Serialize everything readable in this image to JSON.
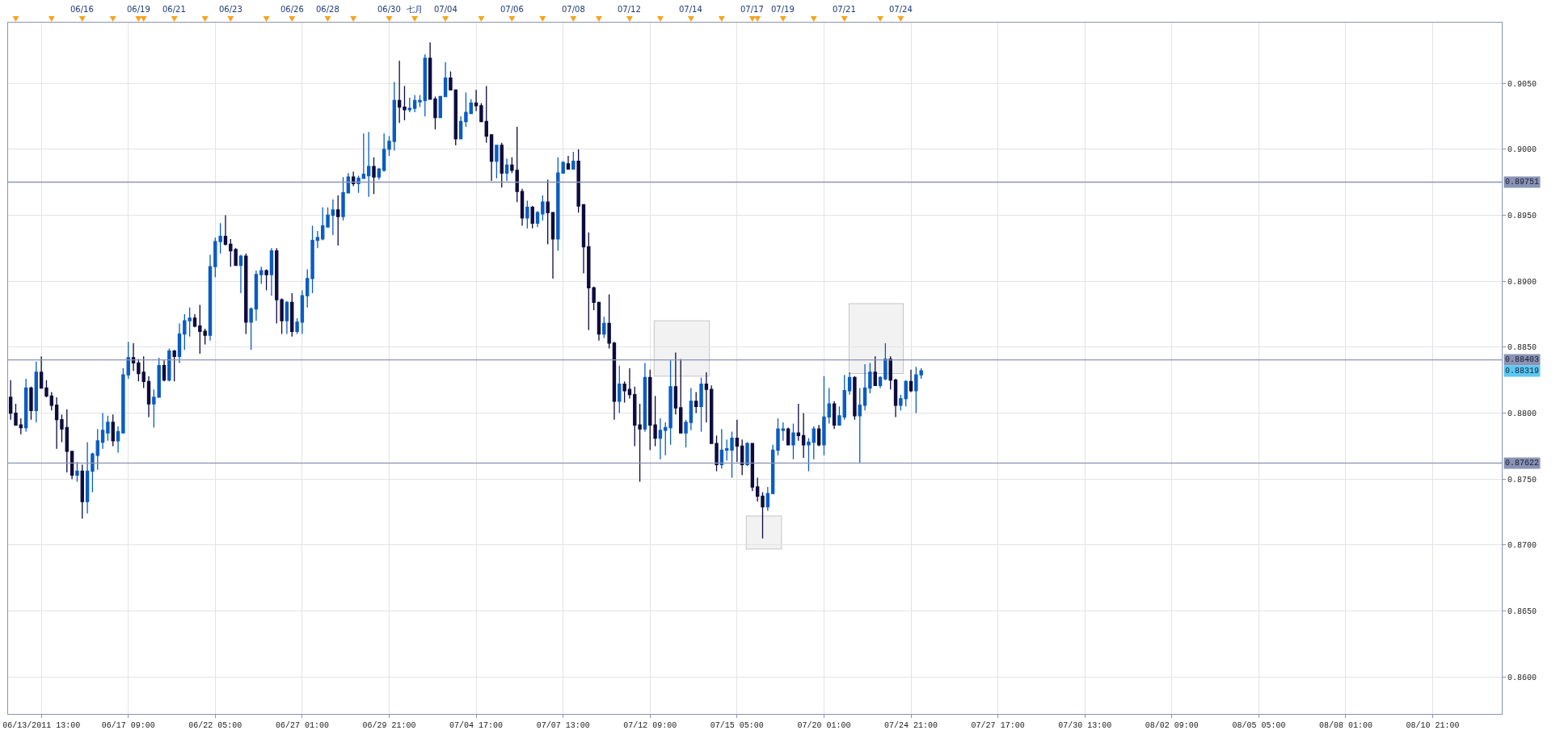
{
  "chart_data": {
    "type": "candlestick",
    "categories": [
      null,
      null,
      null,
      null,
      null,
      null,
      "06/13/2011 13:00",
      null,
      null,
      null,
      null,
      null,
      null,
      null,
      null,
      null,
      null,
      null,
      null,
      null,
      null,
      null,
      null,
      "06/17 09:00",
      null,
      null,
      null,
      null,
      null,
      null,
      null,
      null,
      null,
      null,
      null,
      null,
      null,
      null,
      null,
      null,
      "06/22 05:00",
      null,
      null,
      null,
      null,
      null,
      null,
      null,
      null,
      null,
      null,
      null,
      null,
      null,
      null,
      null,
      null,
      "06/27 01:00",
      null,
      null,
      null,
      null,
      null,
      null,
      null,
      null,
      null,
      null,
      null,
      null,
      null,
      null,
      null,
      null,
      "06/29 21:00",
      null,
      null,
      null,
      null,
      null,
      null,
      null,
      null,
      null,
      null,
      null,
      null,
      null,
      null,
      null,
      null,
      "07/04 17:00",
      null,
      null,
      null,
      null,
      null,
      null,
      null,
      null,
      null,
      null,
      null,
      null,
      null,
      null,
      null,
      null,
      "07/07 13:00",
      null,
      null,
      null,
      null,
      null,
      null,
      null,
      null,
      null,
      null,
      null,
      null,
      null,
      null,
      null,
      null,
      "07/12 09:00",
      null,
      null,
      null,
      null,
      null,
      null,
      null,
      null,
      null,
      null,
      null,
      null,
      null,
      null,
      null,
      null,
      "07/15 05:00",
      null,
      null,
      null,
      null,
      null,
      null,
      null,
      null,
      null,
      null,
      null,
      null,
      null,
      null,
      null,
      null,
      "07/20 01:00",
      null,
      null,
      null,
      null,
      null,
      null,
      null,
      null,
      null,
      null,
      null,
      null,
      null,
      null,
      null,
      null,
      "07/24 21:00",
      null,
      null,
      null,
      null,
      null,
      null,
      null,
      null,
      null,
      null,
      null,
      null,
      null,
      null,
      null,
      null,
      "07/27 17:00",
      null,
      null,
      null,
      null,
      null,
      null,
      null,
      null,
      null,
      null,
      null,
      null,
      null,
      null,
      null,
      null,
      "07/30 13:00",
      null,
      null,
      null,
      null,
      null,
      null,
      null,
      null,
      null,
      null,
      null,
      null,
      null,
      null,
      null,
      null,
      "08/02 09:00",
      null,
      null,
      null,
      null,
      null,
      null,
      null,
      null,
      null,
      null,
      null,
      null,
      null,
      null,
      null,
      null,
      "08/05 05:00",
      null,
      null,
      null,
      null,
      null,
      null,
      null,
      null,
      null,
      null,
      null,
      null,
      null,
      null,
      null,
      null,
      "08/08 01:00",
      null,
      null,
      null,
      null,
      null,
      null,
      null,
      null,
      null,
      null,
      null,
      null,
      null,
      null,
      null,
      null,
      "08/10 21:00",
      null,
      null,
      null,
      null,
      null,
      null,
      null,
      null,
      null,
      null,
      null,
      null,
      null
    ],
    "ohlc": [
      [
        0.8812,
        0.8825,
        0.8795,
        0.88
      ],
      [
        0.88,
        0.8807,
        0.8791,
        0.8791
      ],
      [
        0.8791,
        0.8796,
        0.8784,
        0.8789
      ],
      [
        0.8789,
        0.8826,
        0.8786,
        0.8819
      ],
      [
        0.8819,
        0.882,
        0.8795,
        0.8802
      ],
      [
        0.8802,
        0.8839,
        0.8793,
        0.8831
      ],
      [
        0.8831,
        0.8843,
        0.8819,
        0.8819
      ],
      [
        0.8819,
        0.8825,
        0.8812,
        0.8813
      ],
      [
        0.8813,
        0.8816,
        0.8802,
        0.8806
      ],
      [
        0.8806,
        0.8812,
        0.8773,
        0.8795
      ],
      [
        0.8795,
        0.8799,
        0.8778,
        0.8788
      ],
      [
        0.8789,
        0.8803,
        0.8755,
        0.8771
      ],
      [
        0.8771,
        0.8771,
        0.875,
        0.8753
      ],
      [
        0.8753,
        0.8763,
        0.8748,
        0.8756
      ],
      [
        0.8756,
        0.8761,
        0.872,
        0.8733
      ],
      [
        0.8733,
        0.8778,
        0.8724,
        0.8756
      ],
      [
        0.8756,
        0.877,
        0.874,
        0.8769
      ],
      [
        0.8768,
        0.8788,
        0.8757,
        0.8779
      ],
      [
        0.8778,
        0.88,
        0.8773,
        0.8787
      ],
      [
        0.8785,
        0.8798,
        0.8779,
        0.8793
      ],
      [
        0.8793,
        0.8799,
        0.8775,
        0.8779
      ],
      [
        0.8779,
        0.879,
        0.877,
        0.8786
      ],
      [
        0.8785,
        0.8834,
        0.8785,
        0.8829
      ],
      [
        0.8829,
        0.8854,
        0.8826,
        0.8842
      ],
      [
        0.8842,
        0.8853,
        0.8832,
        0.8838
      ],
      [
        0.8838,
        0.8841,
        0.8824,
        0.883
      ],
      [
        0.8831,
        0.8843,
        0.8819,
        0.8824
      ],
      [
        0.8824,
        0.8828,
        0.8797,
        0.8807
      ],
      [
        0.8807,
        0.8818,
        0.8789,
        0.8812
      ],
      [
        0.8812,
        0.8842,
        0.8812,
        0.8836
      ],
      [
        0.8836,
        0.884,
        0.8824,
        0.8825
      ],
      [
        0.8825,
        0.8849,
        0.8824,
        0.8847
      ],
      [
        0.8847,
        0.8848,
        0.8824,
        0.8843
      ],
      [
        0.8843,
        0.8868,
        0.8838,
        0.886
      ],
      [
        0.886,
        0.8875,
        0.8848,
        0.887
      ],
      [
        0.887,
        0.888,
        0.8858,
        0.8872
      ],
      [
        0.8872,
        0.8875,
        0.8865,
        0.8866
      ],
      [
        0.8866,
        0.8882,
        0.8845,
        0.8862
      ],
      [
        0.8862,
        0.8864,
        0.8852,
        0.8859
      ],
      [
        0.8859,
        0.892,
        0.8855,
        0.8911
      ],
      [
        0.8911,
        0.8933,
        0.8903,
        0.893
      ],
      [
        0.893,
        0.8944,
        0.8921,
        0.8934
      ],
      [
        0.8934,
        0.895,
        0.8927,
        0.8928
      ],
      [
        0.8928,
        0.8932,
        0.8911,
        0.8923
      ],
      [
        0.8924,
        0.8925,
        0.8912,
        0.8912
      ],
      [
        0.8912,
        0.892,
        0.8891,
        0.8919
      ],
      [
        0.8919,
        0.8921,
        0.886,
        0.8869
      ],
      [
        0.8869,
        0.888,
        0.8848,
        0.8879
      ],
      [
        0.8879,
        0.8908,
        0.887,
        0.8905
      ],
      [
        0.8905,
        0.8911,
        0.8898,
        0.8908
      ],
      [
        0.8908,
        0.8909,
        0.8893,
        0.8905
      ],
      [
        0.8905,
        0.8925,
        0.8889,
        0.8923
      ],
      [
        0.8923,
        0.8925,
        0.8868,
        0.8886
      ],
      [
        0.8886,
        0.8887,
        0.886,
        0.887
      ],
      [
        0.887,
        0.8885,
        0.886,
        0.8884
      ],
      [
        0.8884,
        0.8891,
        0.8858,
        0.8862
      ],
      [
        0.8862,
        0.8872,
        0.886,
        0.8869
      ],
      [
        0.8869,
        0.8893,
        0.886,
        0.8889
      ],
      [
        0.8889,
        0.8909,
        0.888,
        0.8902
      ],
      [
        0.8902,
        0.8942,
        0.8891,
        0.8931
      ],
      [
        0.8931,
        0.8938,
        0.8925,
        0.8933
      ],
      [
        0.8932,
        0.8956,
        0.8931,
        0.8942
      ],
      [
        0.8941,
        0.8956,
        0.8941,
        0.895
      ],
      [
        0.895,
        0.8962,
        0.8935,
        0.8954
      ],
      [
        0.8954,
        0.8965,
        0.8927,
        0.8949
      ],
      [
        0.8949,
        0.8979,
        0.8946,
        0.8967
      ],
      [
        0.8967,
        0.8982,
        0.8967,
        0.8979
      ],
      [
        0.8979,
        0.8983,
        0.8972,
        0.8974
      ],
      [
        0.8974,
        0.898,
        0.8967,
        0.8978
      ],
      [
        0.8978,
        0.9012,
        0.8978,
        0.8981
      ],
      [
        0.898,
        0.9013,
        0.8964,
        0.8987
      ],
      [
        0.8987,
        0.8994,
        0.8966,
        0.8979
      ],
      [
        0.8979,
        0.8986,
        0.8977,
        0.8985
      ],
      [
        0.8984,
        0.9012,
        0.8983,
        0.9
      ],
      [
        0.9,
        0.901,
        0.8995,
        0.9006
      ],
      [
        0.9006,
        0.9051,
        0.8999,
        0.9037
      ],
      [
        0.9037,
        0.9067,
        0.902,
        0.9032
      ],
      [
        0.9032,
        0.9048,
        0.9022,
        0.903
      ],
      [
        0.903,
        0.9039,
        0.9028,
        0.9031
      ],
      [
        0.9031,
        0.9041,
        0.9028,
        0.9037
      ],
      [
        0.9036,
        0.9041,
        0.9032,
        0.9037
      ],
      [
        0.9037,
        0.9072,
        0.9025,
        0.9069
      ],
      [
        0.9069,
        0.9081,
        0.9038,
        0.9038
      ],
      [
        0.9038,
        0.904,
        0.9015,
        0.9024
      ],
      [
        0.9024,
        0.904,
        0.9024,
        0.904
      ],
      [
        0.904,
        0.9066,
        0.904,
        0.9054
      ],
      [
        0.9054,
        0.9059,
        0.9045,
        0.9045
      ],
      [
        0.9045,
        0.9045,
        0.9003,
        0.9008
      ],
      [
        0.9008,
        0.9025,
        0.9008,
        0.9021
      ],
      [
        0.9021,
        0.9043,
        0.9017,
        0.9028
      ],
      [
        0.9027,
        0.9038,
        0.9027,
        0.9035
      ],
      [
        0.9035,
        0.9045,
        0.9029,
        0.9033
      ],
      [
        0.9033,
        0.9035,
        0.9021,
        0.9021
      ],
      [
        0.9021,
        0.9048,
        0.9005,
        0.901
      ],
      [
        0.9011,
        0.9011,
        0.8976,
        0.8991
      ],
      [
        0.8991,
        0.9003,
        0.8978,
        0.9003
      ],
      [
        0.9003,
        0.9005,
        0.8971,
        0.8982
      ],
      [
        0.8982,
        0.8993,
        0.8976,
        0.8988
      ],
      [
        0.8988,
        0.8994,
        0.8982,
        0.8984
      ],
      [
        0.8984,
        0.9017,
        0.896,
        0.8968
      ],
      [
        0.8968,
        0.897,
        0.8942,
        0.8948
      ],
      [
        0.8948,
        0.8961,
        0.894,
        0.8956
      ],
      [
        0.8956,
        0.8957,
        0.894,
        0.8944
      ],
      [
        0.8944,
        0.8953,
        0.8941,
        0.8952
      ],
      [
        0.8951,
        0.8965,
        0.8946,
        0.896
      ],
      [
        0.896,
        0.8977,
        0.8928,
        0.8952
      ],
      [
        0.8952,
        0.8952,
        0.8902,
        0.8932
      ],
      [
        0.8932,
        0.8994,
        0.8923,
        0.8982
      ],
      [
        0.8982,
        0.8991,
        0.8982,
        0.899
      ],
      [
        0.8989,
        0.8995,
        0.8985,
        0.8985
      ],
      [
        0.8985,
        0.8998,
        0.8985,
        0.8991
      ],
      [
        0.8991,
        0.9,
        0.8952,
        0.8957
      ],
      [
        0.8958,
        0.8958,
        0.8906,
        0.8926
      ],
      [
        0.8926,
        0.8937,
        0.8863,
        0.8895
      ],
      [
        0.8895,
        0.8896,
        0.8878,
        0.8884
      ],
      [
        0.8884,
        0.8884,
        0.8855,
        0.886
      ],
      [
        0.886,
        0.8873,
        0.8857,
        0.8868
      ],
      [
        0.8868,
        0.889,
        0.8849,
        0.8853
      ],
      [
        0.8853,
        0.8854,
        0.8795,
        0.8809
      ],
      [
        0.8809,
        0.8836,
        0.88,
        0.8822
      ],
      [
        0.8822,
        0.8824,
        0.8808,
        0.8817
      ],
      [
        0.8818,
        0.8834,
        0.8811,
        0.8814
      ],
      [
        0.8814,
        0.882,
        0.8775,
        0.8791
      ],
      [
        0.8791,
        0.8807,
        0.8748,
        0.8788
      ],
      [
        0.8788,
        0.8838,
        0.8786,
        0.8827
      ],
      [
        0.8827,
        0.8833,
        0.8772,
        0.8791
      ],
      [
        0.8791,
        0.8813,
        0.8775,
        0.8781
      ],
      [
        0.8781,
        0.8796,
        0.8765,
        0.8787
      ],
      [
        0.8787,
        0.8793,
        0.8768,
        0.8789
      ],
      [
        0.8789,
        0.884,
        0.8776,
        0.882
      ],
      [
        0.882,
        0.8846,
        0.8799,
        0.8804
      ],
      [
        0.8804,
        0.8841,
        0.8785,
        0.8785
      ],
      [
        0.8785,
        0.8795,
        0.8774,
        0.8793
      ],
      [
        0.8793,
        0.8819,
        0.8787,
        0.8809
      ],
      [
        0.8809,
        0.8816,
        0.88,
        0.8805
      ],
      [
        0.8805,
        0.8827,
        0.8786,
        0.8822
      ],
      [
        0.8822,
        0.8831,
        0.8793,
        0.8818
      ],
      [
        0.8818,
        0.8821,
        0.8777,
        0.8777
      ],
      [
        0.8777,
        0.8783,
        0.8756,
        0.8761
      ],
      [
        0.8761,
        0.8788,
        0.8758,
        0.8772
      ],
      [
        0.8772,
        0.878,
        0.8764,
        0.8773
      ],
      [
        0.8772,
        0.8786,
        0.8751,
        0.8781
      ],
      [
        0.8781,
        0.8795,
        0.8763,
        0.8775
      ],
      [
        0.8775,
        0.878,
        0.8753,
        0.8761
      ],
      [
        0.8761,
        0.8778,
        0.876,
        0.8777
      ],
      [
        0.8777,
        0.8777,
        0.8741,
        0.8744
      ],
      [
        0.8744,
        0.8751,
        0.8733,
        0.8737
      ],
      [
        0.8737,
        0.874,
        0.8705,
        0.8729
      ],
      [
        0.8729,
        0.8744,
        0.8726,
        0.8739
      ],
      [
        0.8739,
        0.8776,
        0.8739,
        0.8772
      ],
      [
        0.8772,
        0.8796,
        0.8768,
        0.8788
      ],
      [
        0.8787,
        0.8793,
        0.8779,
        0.8788
      ],
      [
        0.8788,
        0.8789,
        0.8776,
        0.8776
      ],
      [
        0.8776,
        0.8792,
        0.8765,
        0.8785
      ],
      [
        0.8785,
        0.8807,
        0.8779,
        0.8783
      ],
      [
        0.8783,
        0.88,
        0.8766,
        0.8776
      ],
      [
        0.8776,
        0.8781,
        0.8756,
        0.8778
      ],
      [
        0.8778,
        0.879,
        0.8765,
        0.8788
      ],
      [
        0.8788,
        0.8791,
        0.8775,
        0.8776
      ],
      [
        0.8776,
        0.8828,
        0.8768,
        0.8797
      ],
      [
        0.8797,
        0.8819,
        0.8792,
        0.8807
      ],
      [
        0.8807,
        0.8809,
        0.8788,
        0.8791
      ],
      [
        0.8791,
        0.8805,
        0.8791,
        0.8798
      ],
      [
        0.8797,
        0.8829,
        0.8795,
        0.8817
      ],
      [
        0.8817,
        0.8831,
        0.8814,
        0.8827
      ],
      [
        0.8827,
        0.8828,
        0.8795,
        0.8798
      ],
      [
        0.8798,
        0.8819,
        0.8762,
        0.8806
      ],
      [
        0.8806,
        0.8837,
        0.8802,
        0.8819
      ],
      [
        0.8819,
        0.8838,
        0.8815,
        0.8831
      ],
      [
        0.8831,
        0.8843,
        0.8821,
        0.8821
      ],
      [
        0.8821,
        0.8828,
        0.8819,
        0.8827
      ],
      [
        0.8826,
        0.8853,
        0.8825,
        0.8841
      ],
      [
        0.8841,
        0.8843,
        0.8818,
        0.8825
      ],
      [
        0.8825,
        0.8826,
        0.8797,
        0.8806
      ],
      [
        0.8806,
        0.8814,
        0.8802,
        0.8811
      ],
      [
        0.8811,
        0.8825,
        0.8805,
        0.8824
      ],
      [
        0.8824,
        0.8833,
        0.8816,
        0.8817
      ],
      [
        0.8817,
        0.8835,
        0.88,
        0.8829
      ],
      [
        0.8829,
        0.8834,
        0.8826,
        0.8832
      ],
      null,
      null,
      null,
      null,
      null,
      null,
      null,
      null,
      null,
      null,
      null,
      null,
      null,
      null,
      null,
      null,
      null,
      null,
      null,
      null,
      null,
      null,
      null,
      null,
      null,
      null,
      null,
      null,
      null,
      null,
      null,
      null,
      null,
      null,
      null,
      null,
      null,
      null,
      null,
      null,
      null,
      null,
      null,
      null,
      null,
      null,
      null,
      null,
      null,
      null,
      null,
      null,
      null,
      null,
      null,
      null,
      null,
      null,
      null,
      null,
      null,
      null,
      null,
      null,
      null,
      null,
      null,
      null,
      null,
      null,
      null,
      null,
      null,
      null,
      null,
      null,
      null,
      null,
      null,
      null,
      null,
      null,
      null,
      null,
      null,
      null,
      null,
      null,
      null,
      null,
      null,
      null,
      null,
      null,
      null,
      null,
      null,
      null,
      null,
      null,
      null,
      null,
      null,
      null,
      null,
      null,
      null,
      null,
      null,
      null,
      null,
      null,
      null
    ],
    "colors": [
      "#0e0b3e",
      "#0e0b3e",
      "#0e0b3e",
      "#0a5cc2",
      "#0e0b3e",
      "#0a5cc2",
      "#0e0b3e",
      "#0e0b3e",
      "#0e0b3e",
      "#0e0b3e",
      "#0e0b3e",
      "#0e0b3e",
      "#0e0b3e",
      "#0a5cc2",
      "#0e0b3e",
      "#0a5cc2",
      "#0a5cc2",
      "#0a5cc2",
      "#0a5cc2",
      "#0a5cc2",
      "#0e0b3e",
      "#0a5cc2",
      "#0a5cc2",
      "#0a5cc2",
      "#0e0b3e",
      "#0e0b3e",
      "#0e0b3e",
      "#0e0b3e",
      "#0a5cc2",
      "#0a5cc2",
      "#0e0b3e",
      "#0a5cc2",
      "#0e0b3e",
      "#0a5cc2",
      "#0a5cc2",
      "#0a5cc2",
      "#0e0b3e",
      "#0e0b3e",
      "#0e0b3e",
      "#0a5cc2",
      "#0a5cc2",
      "#0a5cc2",
      "#0e0b3e",
      "#0e0b3e",
      "#0e0b3e",
      "#0a5cc2",
      "#0e0b3e",
      "#0a5cc2",
      "#0a5cc2",
      "#0a5cc2",
      "#0e0b3e",
      "#0a5cc2",
      "#0e0b3e",
      "#0e0b3e",
      "#0a5cc2",
      "#0e0b3e",
      "#0a5cc2",
      "#0a5cc2",
      "#0a5cc2",
      "#0a5cc2",
      "#0a5cc2",
      "#0a5cc2",
      "#0a5cc2",
      "#0a5cc2",
      "#0e0b3e",
      "#0a5cc2",
      "#0a5cc2",
      "#0e0b3e",
      "#0a5cc2",
      "#0a5cc2",
      "#0a5cc2",
      "#0e0b3e",
      "#0a5cc2",
      "#0a5cc2",
      "#0a5cc2",
      "#0a5cc2",
      "#0e0b3e",
      "#0e0b3e",
      "#0a5cc2",
      "#0a5cc2",
      "#0a5cc2",
      "#0a5cc2",
      "#0e0b3e",
      "#0e0b3e",
      "#0a5cc2",
      "#0a5cc2",
      "#0e0b3e",
      "#0e0b3e",
      "#0a5cc2",
      "#0a5cc2",
      "#0a5cc2",
      "#0e0b3e",
      "#0e0b3e",
      "#0e0b3e",
      "#0e0b3e",
      "#0a5cc2",
      "#0e0b3e",
      "#0a5cc2",
      "#0e0b3e",
      "#0e0b3e",
      "#0e0b3e",
      "#0a5cc2",
      "#0e0b3e",
      "#0a5cc2",
      "#0a5cc2",
      "#0e0b3e",
      "#0e0b3e",
      "#0a5cc2",
      "#0a5cc2",
      "#0e0b3e",
      "#0a5cc2",
      "#0e0b3e",
      "#0e0b3e",
      "#0e0b3e",
      "#0e0b3e",
      "#0e0b3e",
      "#0a5cc2",
      "#0e0b3e",
      "#0e0b3e",
      "#0a5cc2",
      "#0e0b3e",
      "#0e0b3e",
      "#0e0b3e",
      "#0e0b3e",
      "#0a5cc2",
      "#0e0b3e",
      "#0e0b3e",
      "#0a5cc2",
      "#0a5cc2",
      "#0a5cc2",
      "#0e0b3e",
      "#0e0b3e",
      "#0a5cc2",
      "#0a5cc2",
      "#0e0b3e",
      "#0a5cc2",
      "#0e0b3e",
      "#0e0b3e",
      "#0e0b3e",
      "#0a5cc2",
      "#0a5cc2",
      "#0a5cc2",
      "#0e0b3e",
      "#0e0b3e",
      "#0a5cc2",
      "#0e0b3e",
      "#0e0b3e",
      "#0e0b3e",
      "#0a5cc2",
      "#0a5cc2",
      "#0a5cc2",
      "#0a5cc2",
      "#0e0b3e",
      "#0a5cc2",
      "#0e0b3e",
      "#0e0b3e",
      "#0a5cc2",
      "#0a5cc2",
      "#0e0b3e",
      "#0a5cc2",
      "#0a5cc2",
      "#0e0b3e",
      "#0a5cc2",
      "#0a5cc2",
      "#0a5cc2",
      "#0e0b3e",
      "#0a5cc2",
      "#0a5cc2",
      "#0a5cc2",
      "#0e0b3e",
      "#0a5cc2",
      "#0a5cc2",
      "#0e0b3e",
      "#0e0b3e",
      "#0a5cc2",
      "#0a5cc2",
      "#0e0b3e",
      "#0a5cc2",
      "#0a5cc2",
      null,
      null,
      null,
      null,
      null,
      null,
      null,
      null,
      null,
      null,
      null,
      null,
      null,
      null,
      null,
      null,
      null,
      null,
      null,
      null,
      null,
      null,
      null,
      null,
      null,
      null,
      null,
      null,
      null,
      null,
      null,
      null,
      null,
      null,
      null,
      null,
      null,
      null,
      null,
      null,
      null,
      null,
      null,
      null,
      null,
      null,
      null,
      null,
      null,
      null,
      null,
      null,
      null,
      null,
      null,
      null,
      null,
      null,
      null,
      null,
      null,
      null,
      null,
      null,
      null,
      null,
      null,
      null,
      null,
      null,
      null,
      null,
      null,
      null,
      null,
      null,
      null,
      null,
      null,
      null,
      null,
      null,
      null,
      null,
      null,
      null,
      null,
      null,
      null,
      null,
      null,
      null,
      null,
      null,
      null,
      null,
      null,
      null,
      null,
      null,
      null,
      null,
      null,
      null,
      null,
      null,
      null,
      null,
      null,
      null,
      null,
      null,
      null
    ],
    "ylim": [
      0.8572,
      0.9096
    ],
    "yticks": [
      {
        "value": 0.86,
        "label": "0.8600"
      },
      {
        "value": 0.865,
        "label": "0.8650"
      },
      {
        "value": 0.87,
        "label": "0.8700"
      },
      {
        "value": 0.875,
        "label": "0.8750"
      },
      {
        "value": 0.88,
        "label": "0.8800"
      },
      {
        "value": 0.885,
        "label": "0.8850"
      },
      {
        "value": 0.89,
        "label": "0.8900"
      },
      {
        "value": 0.895,
        "label": "0.8950"
      },
      {
        "value": 0.9,
        "label": "0.9000"
      },
      {
        "value": 0.905,
        "label": "0.9050"
      }
    ],
    "ref_lines": [
      {
        "axis": "y",
        "value": 0.89751,
        "label": "0.89751",
        "color": "#8a93b5"
      },
      {
        "axis": "y",
        "value": 0.88403,
        "label": "0.88403",
        "color": "#8a93b5"
      },
      {
        "axis": "y",
        "value": 0.87622,
        "label": "0.87622",
        "color": "#8a93b5"
      }
    ],
    "annotations": [
      "0.88319",
      "06/16",
      "06/19",
      "06/21",
      "06/23",
      "06/26",
      "06/28",
      "06/30",
      "七月",
      "07/04",
      "07/06",
      "07/08",
      "07/12",
      "07/14",
      "07/17",
      "07/19",
      "07/21",
      "07/24"
    ],
    "grid": true,
    "legend": false
  }
}
